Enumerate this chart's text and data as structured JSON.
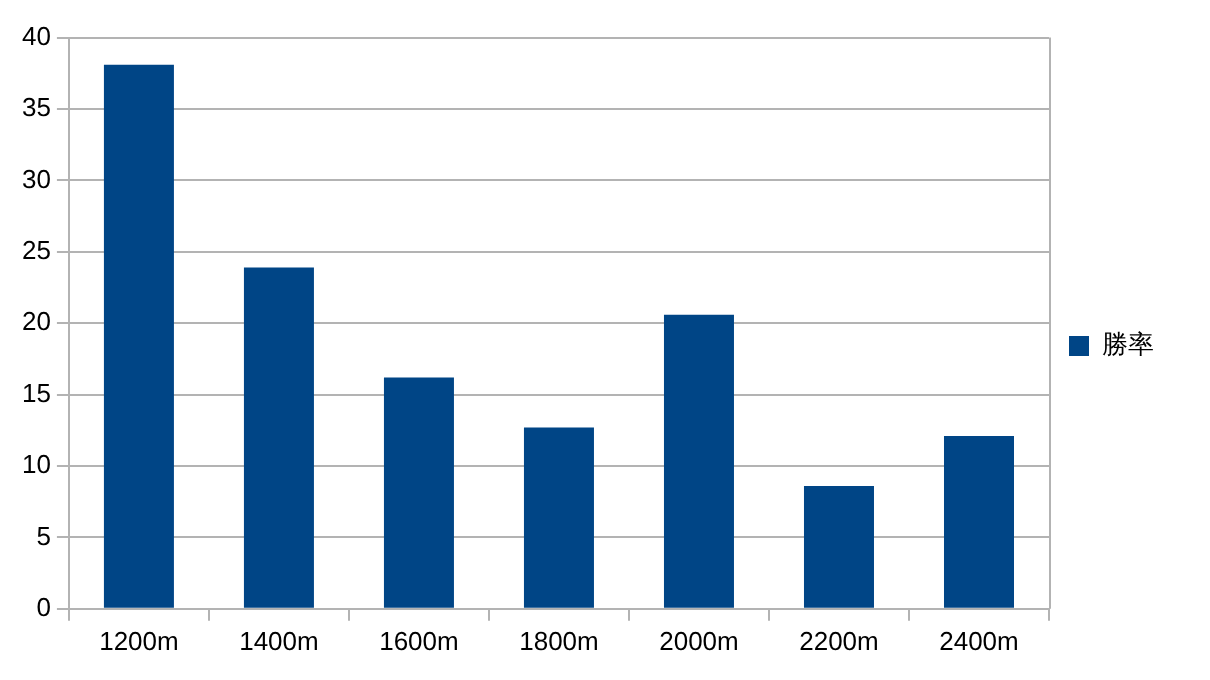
{
  "chart_data": {
    "type": "bar",
    "categories": [
      "1200m",
      "1400m",
      "1600m",
      "1800m",
      "2000m",
      "2200m",
      "2400m"
    ],
    "series": [
      {
        "name": "勝率",
        "color": "#004586",
        "values": [
          38.1,
          23.9,
          16.2,
          12.7,
          20.6,
          8.6,
          12.1
        ]
      }
    ],
    "ylim": [
      0,
      40
    ],
    "yticks": [
      0,
      5,
      10,
      15,
      20,
      25,
      30,
      35,
      40
    ],
    "grid": "y",
    "legend": "right"
  }
}
